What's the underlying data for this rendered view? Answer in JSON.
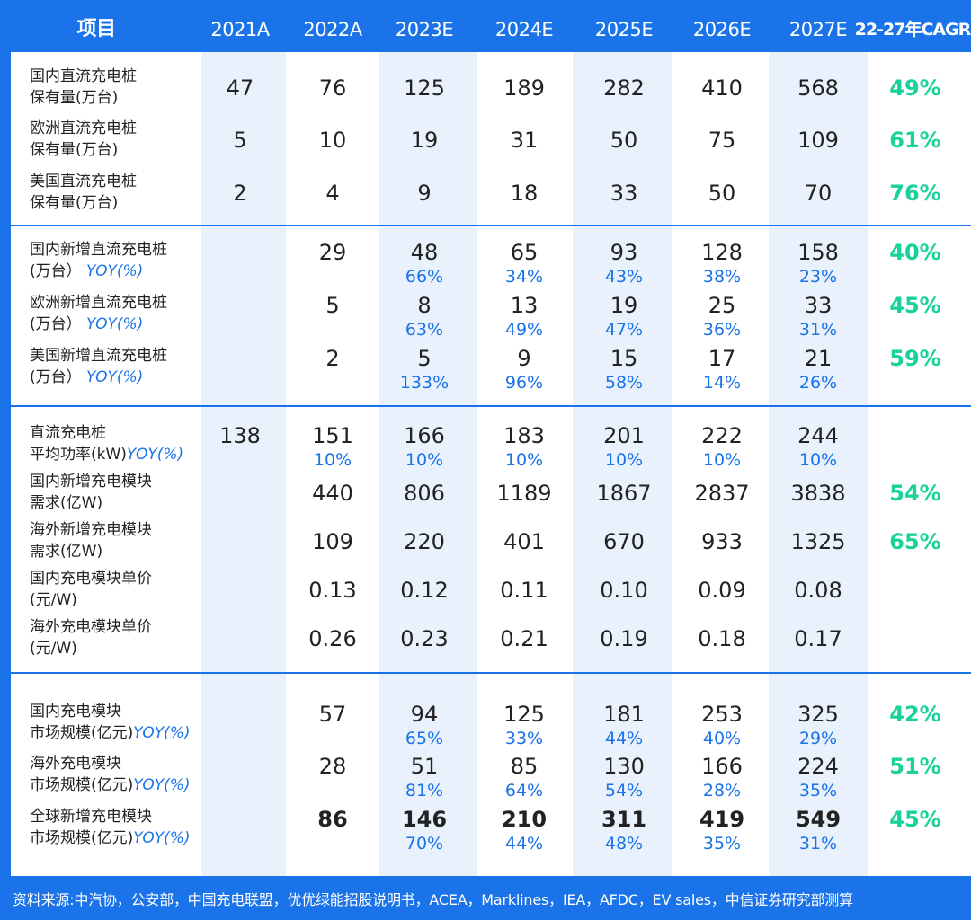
{
  "header": {
    "item_label": "项目",
    "years": [
      "2021A",
      "2022A",
      "2023E",
      "2024E",
      "2025E",
      "2026E",
      "2027E"
    ],
    "cagr_label": "22-27年CAGR"
  },
  "sections": [
    {
      "name": "dc-pile-stock",
      "rows": [
        {
          "label1": "国内直流充电桩",
          "label2": "保有量(万台)",
          "values": [
            "47",
            "76",
            "125",
            "189",
            "282",
            "410",
            "568"
          ],
          "cagr": "49%"
        },
        {
          "label1": "欧洲直流充电桩",
          "label2": "保有量(万台)",
          "values": [
            "5",
            "10",
            "19",
            "31",
            "50",
            "75",
            "109"
          ],
          "cagr": "61%"
        },
        {
          "label1": "美国直流充电桩",
          "label2": "保有量(万台)",
          "values": [
            "2",
            "4",
            "9",
            "18",
            "33",
            "50",
            "70"
          ],
          "cagr": "76%"
        }
      ]
    },
    {
      "name": "dc-pile-new",
      "rows": [
        {
          "label1": "国内新增直流充电桩",
          "label2": "(万台）",
          "label2_yoy": "YOY(%)",
          "values": [
            "",
            "29",
            "48",
            "65",
            "93",
            "128",
            "158"
          ],
          "yoy": [
            "",
            "",
            "66%",
            "34%",
            "43%",
            "38%",
            "23%"
          ],
          "cagr": "40%"
        },
        {
          "label1": "欧洲新增直流充电桩",
          "label2": "(万台）",
          "label2_yoy": "YOY(%)",
          "values": [
            "",
            "5",
            "8",
            "13",
            "19",
            "25",
            "33"
          ],
          "yoy": [
            "",
            "",
            "63%",
            "49%",
            "47%",
            "36%",
            "31%"
          ],
          "cagr": "45%"
        },
        {
          "label1": "美国新增直流充电桩",
          "label2": "(万台）",
          "label2_yoy": "YOY(%)",
          "values": [
            "",
            "2",
            "5",
            "9",
            "15",
            "17",
            "21"
          ],
          "yoy": [
            "",
            "",
            "133%",
            "96%",
            "58%",
            "14%",
            "26%"
          ],
          "cagr": "59%"
        }
      ]
    },
    {
      "name": "module-demand",
      "rows": [
        {
          "label1": "直流充电桩",
          "label2": "平均功率(kW)",
          "label2_yoy": "YOY(%)",
          "values": [
            "138",
            "151",
            "166",
            "183",
            "201",
            "222",
            "244"
          ],
          "yoy": [
            "",
            "10%",
            "10%",
            "10%",
            "10%",
            "10%",
            "10%"
          ],
          "cagr": ""
        },
        {
          "label1": "国内新增充电模块",
          "label2": "需求(亿W)",
          "values": [
            "",
            "440",
            "806",
            "1189",
            "1867",
            "2837",
            "3838"
          ],
          "cagr": "54%"
        },
        {
          "label1": "海外新增充电模块",
          "label2": "需求(亿W)",
          "values": [
            "",
            "109",
            "220",
            "401",
            "670",
            "933",
            "1325"
          ],
          "cagr": "65%"
        },
        {
          "label1": "国内充电模块单价",
          "label2": "(元/W)",
          "values": [
            "",
            "0.13",
            "0.12",
            "0.11",
            "0.10",
            "0.09",
            "0.08"
          ],
          "cagr": ""
        },
        {
          "label1": "海外充电模块单价",
          "label2": "(元/W)",
          "values": [
            "",
            "0.26",
            "0.23",
            "0.21",
            "0.19",
            "0.18",
            "0.17"
          ],
          "cagr": ""
        }
      ]
    },
    {
      "name": "market-size",
      "rows": [
        {
          "label1": "国内充电模块",
          "label2": "市场规模(亿元)",
          "label2_yoy": "YOY(%)",
          "values": [
            "",
            "57",
            "94",
            "125",
            "181",
            "253",
            "325"
          ],
          "yoy": [
            "",
            "",
            "65%",
            "33%",
            "44%",
            "40%",
            "29%"
          ],
          "cagr": "42%"
        },
        {
          "label1": "海外充电模块",
          "label2": "市场规模(亿元)",
          "label2_yoy": "YOY(%)",
          "values": [
            "",
            "28",
            "51",
            "85",
            "130",
            "166",
            "224"
          ],
          "yoy": [
            "",
            "",
            "81%",
            "64%",
            "54%",
            "28%",
            "35%"
          ],
          "cagr": "51%"
        },
        {
          "label1": "全球新增充电模块",
          "label2": "市场规模(亿元)",
          "label2_yoy": "YOY(%)",
          "values": [
            "",
            "86",
            "146",
            "210",
            "311",
            "419",
            "549"
          ],
          "yoy": [
            "",
            "",
            "70%",
            "44%",
            "48%",
            "35%",
            "31%"
          ],
          "cagr": "45%",
          "bold": true
        }
      ]
    }
  ],
  "footer": {
    "source": "资料来源:中汽协，公安部，中国充电联盟，优优绿能招股说明书，ACEA，Marklines，IEA，AFDC，EV sales，中信证券研究部测算"
  },
  "colors": {
    "frame": "#1a73e8",
    "alt_column": "#e9f2fc",
    "yoy": "#1a73e8",
    "cagr": "#19d29a",
    "text": "#222222"
  }
}
